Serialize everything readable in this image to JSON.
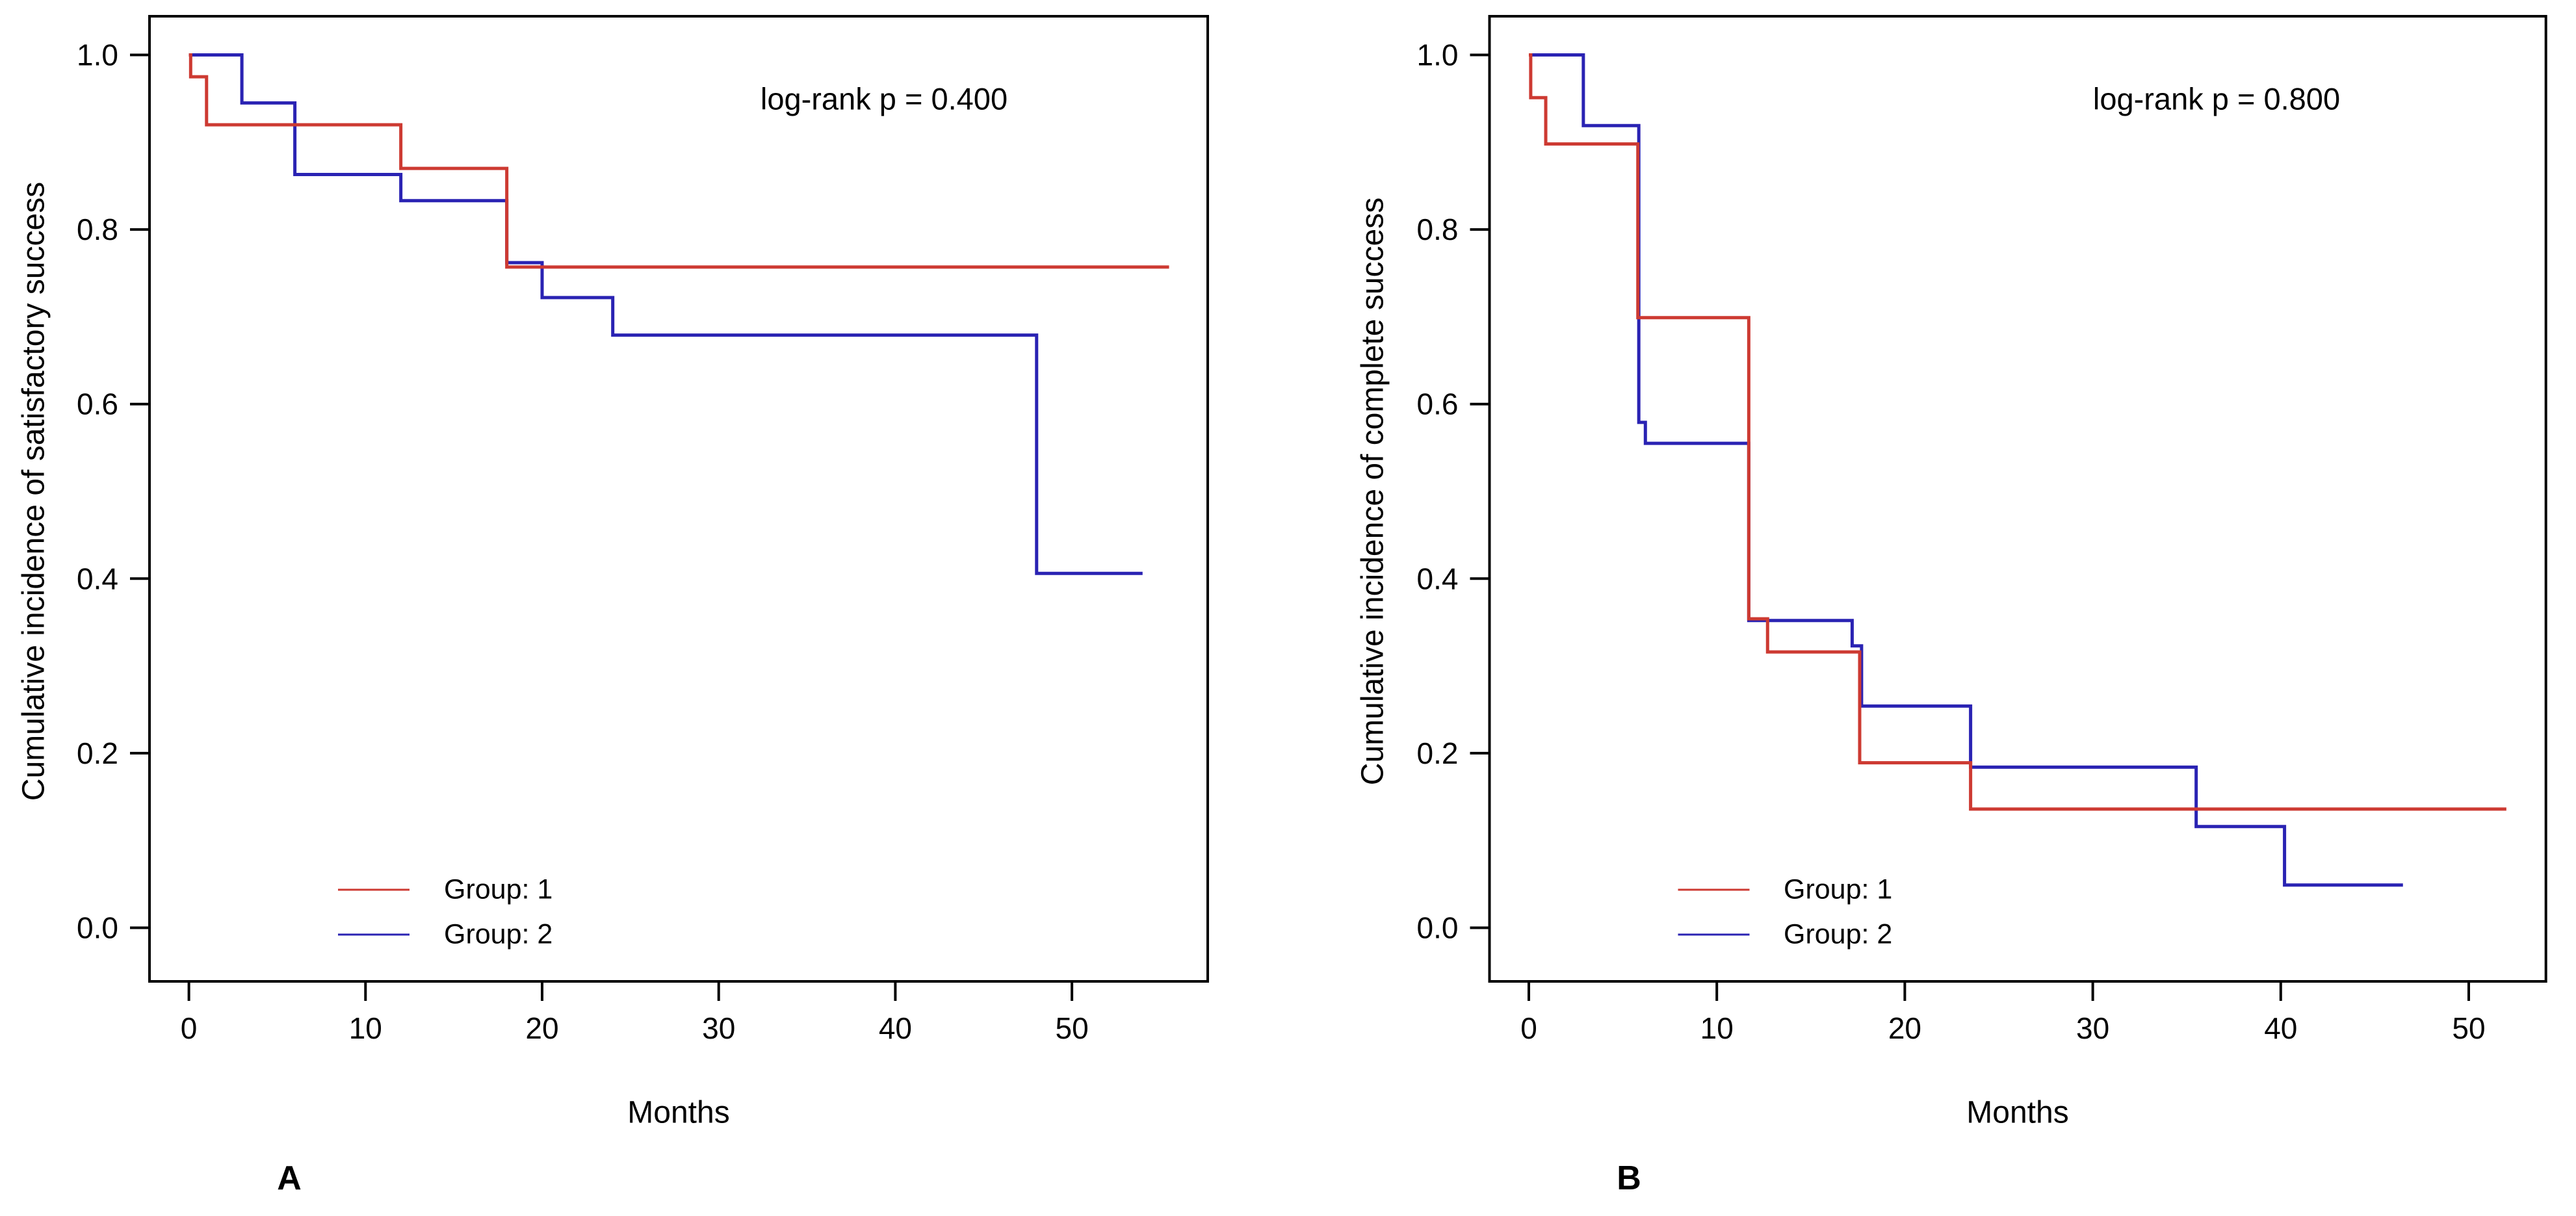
{
  "figure": {
    "background": "#ffffff",
    "text_color": "#000000",
    "panels": [
      {
        "letter": "A",
        "p_annotation": "log-rank p = 0.400",
        "ylabel": "Cumulative incidence of satisfactory success",
        "xlabel": "Months",
        "legend": [
          {
            "label": "Group: 1",
            "color": "#cd3a32"
          },
          {
            "label": "Group: 2",
            "color": "#2a23b3"
          }
        ]
      },
      {
        "letter": "B",
        "p_annotation": "log-rank p = 0.800",
        "ylabel": "Cumulative incidence of complete success",
        "xlabel": "Months",
        "legend": [
          {
            "label": "Group: 1",
            "color": "#cd3a32"
          },
          {
            "label": "Group: 2",
            "color": "#2a23b3"
          }
        ]
      }
    ]
  },
  "chart_data": [
    {
      "type": "line",
      "subtype": "kaplan-meier-step",
      "panel": "A",
      "annotation": "log-rank p = 0.400",
      "xlabel": "Months",
      "ylabel": "Cumulative incidence of satisfactory success",
      "xticks": [
        0,
        10,
        20,
        30,
        40,
        50
      ],
      "xtick_labels": [
        "0",
        "10",
        "20",
        "30",
        "40",
        "50"
      ],
      "yticks": [
        1.0,
        0.8,
        0.6,
        0.4,
        0.2,
        0.0
      ],
      "ytick_labels": [
        "1.0",
        "0.8",
        "0.6",
        "0.4",
        "0.2",
        "0.0"
      ],
      "xlim": [
        -2.2,
        57.7
      ],
      "ylim": [
        -0.06,
        1.04
      ],
      "grid": false,
      "legend_position": "inside-bottom-left",
      "series": [
        {
          "name": "Group: 1",
          "color": "#cd3a32",
          "end_month": 55.5,
          "steps": [
            [
              0,
              1.0
            ],
            [
              0.1,
              0.975
            ],
            [
              1,
              0.92
            ],
            [
              12,
              0.87
            ],
            [
              18,
              0.757
            ]
          ]
        },
        {
          "name": "Group: 2",
          "color": "#2a23b3",
          "end_month": 54,
          "steps": [
            [
              0,
              1.0
            ],
            [
              3,
              0.945
            ],
            [
              6,
              0.863
            ],
            [
              12,
              0.833
            ],
            [
              18,
              0.762
            ],
            [
              20,
              0.722
            ],
            [
              24,
              0.679
            ],
            [
              48,
              0.406
            ]
          ]
        }
      ]
    },
    {
      "type": "line",
      "subtype": "kaplan-meier-step",
      "panel": "B",
      "annotation": "log-rank p = 0.800",
      "xlabel": "Months",
      "ylabel": "Cumulative incidence of complete success",
      "xticks": [
        0,
        10,
        20,
        30,
        40,
        50
      ],
      "xtick_labels": [
        "0",
        "10",
        "20",
        "30",
        "40",
        "50"
      ],
      "yticks": [
        1.0,
        0.8,
        0.6,
        0.4,
        0.2,
        0.0
      ],
      "ytick_labels": [
        "1.0",
        "0.8",
        "0.6",
        "0.4",
        "0.2",
        "0.0"
      ],
      "xlim": [
        -2.1,
        54.2
      ],
      "ylim": [
        -0.06,
        1.04
      ],
      "grid": false,
      "legend_position": "inside-bottom-left",
      "series": [
        {
          "name": "Group: 1",
          "color": "#cd3a32",
          "end_month": 52,
          "steps": [
            [
              0,
              1.0
            ],
            [
              0.1,
              0.951
            ],
            [
              0.9,
              0.898
            ],
            [
              5.8,
              0.699
            ],
            [
              11.7,
              0.354
            ],
            [
              12.7,
              0.316
            ],
            [
              17.6,
              0.189
            ],
            [
              23.5,
              0.136
            ]
          ]
        },
        {
          "name": "Group: 2",
          "color": "#2a23b3",
          "end_month": 46.5,
          "steps": [
            [
              0,
              1.0
            ],
            [
              2.9,
              0.919
            ],
            [
              5.85,
              0.579
            ],
            [
              6.2,
              0.555
            ],
            [
              11.7,
              0.352
            ],
            [
              17.2,
              0.323
            ],
            [
              17.7,
              0.254
            ],
            [
              23.5,
              0.184
            ],
            [
              35.5,
              0.116
            ],
            [
              40.2,
              0.049
            ]
          ]
        }
      ]
    }
  ]
}
